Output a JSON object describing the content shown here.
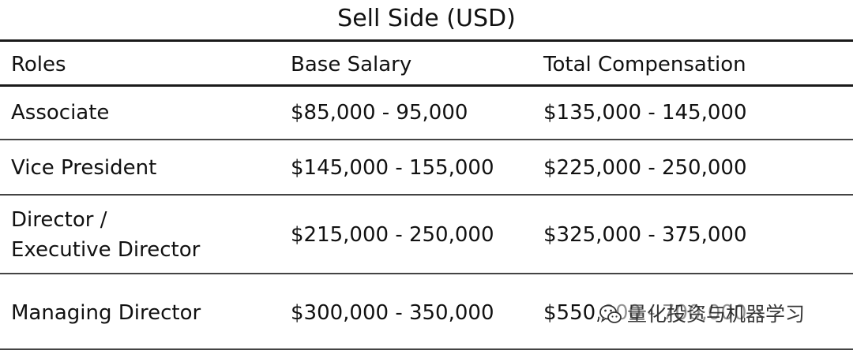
{
  "table": {
    "title": "Sell Side (USD)",
    "headers": [
      "Roles",
      "Base Salary",
      "Total Compensation"
    ],
    "rows": [
      {
        "role": "Associate",
        "base": "$85,000 - 95,000",
        "total": "$135,000 - 145,000"
      },
      {
        "role": "Vice President",
        "base": "$145,000 - 155,000",
        "total": "$225,000 - 250,000"
      },
      {
        "role_line1": "Director /",
        "role_line2": "Executive Director",
        "base": "$215,000 - 250,000",
        "total": "$325,000 - 375,000"
      },
      {
        "role": "Managing Director",
        "base": "$300,000 - 350,000",
        "total": "$550,000 - 700,000"
      }
    ]
  },
  "watermark": {
    "text": "量化投资与机器学习",
    "icon": "wechat-logo-icon"
  }
}
